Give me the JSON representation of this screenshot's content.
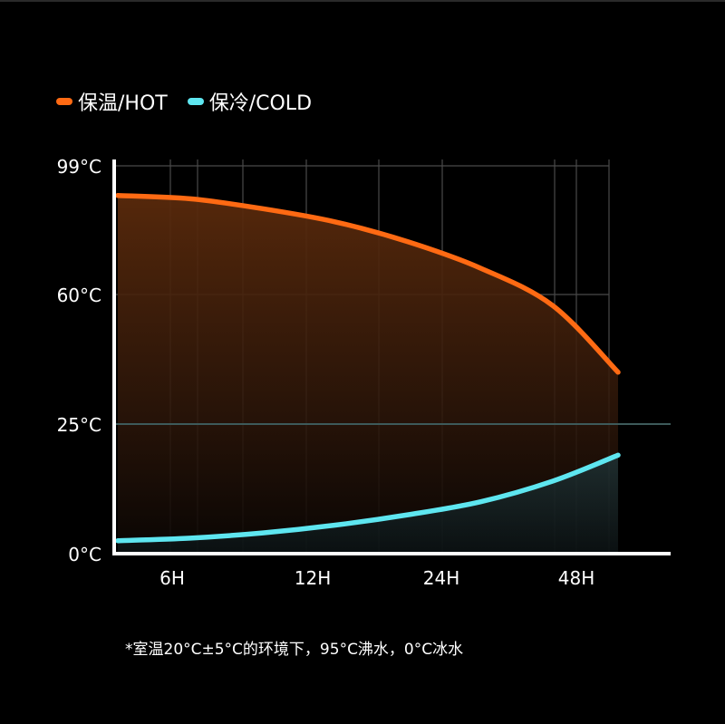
{
  "legend": {
    "hot_label": "保温/HOT",
    "cold_label": "保冷/COLD"
  },
  "footnote": "*室温20°C±5°C的环境下，95°C沸水，0°C冰水",
  "colors": {
    "hot": "#ff6a13",
    "cold": "#5ee6f0",
    "background": "#000000",
    "grid": "#555555",
    "axis": "#ffffff"
  },
  "chart_data": {
    "type": "line",
    "x_ticks": [
      "6H",
      "12H",
      "24H",
      "48H"
    ],
    "y_ticks": [
      "99°C",
      "60°C",
      "25°C",
      "0°C"
    ],
    "y_tick_values": [
      99,
      60,
      25,
      0
    ],
    "ylim": [
      0,
      99
    ],
    "reference_line": 25,
    "grid": true,
    "area_fill": true,
    "series": [
      {
        "name": "保温/HOT",
        "color": "#ff6a13",
        "points": [
          [
            0,
            90
          ],
          [
            1,
            89
          ],
          [
            2,
            86
          ],
          [
            3,
            82
          ],
          [
            4,
            76
          ],
          [
            5,
            68
          ],
          [
            6,
            57
          ],
          [
            7,
            39
          ]
        ]
      },
      {
        "name": "保冷/COLD",
        "color": "#5ee6f0",
        "points": [
          [
            0,
            2.5
          ],
          [
            1,
            3
          ],
          [
            2,
            4
          ],
          [
            3,
            5.5
          ],
          [
            4,
            7.5
          ],
          [
            5,
            10
          ],
          [
            6,
            14
          ],
          [
            7,
            19
          ]
        ]
      }
    ]
  }
}
